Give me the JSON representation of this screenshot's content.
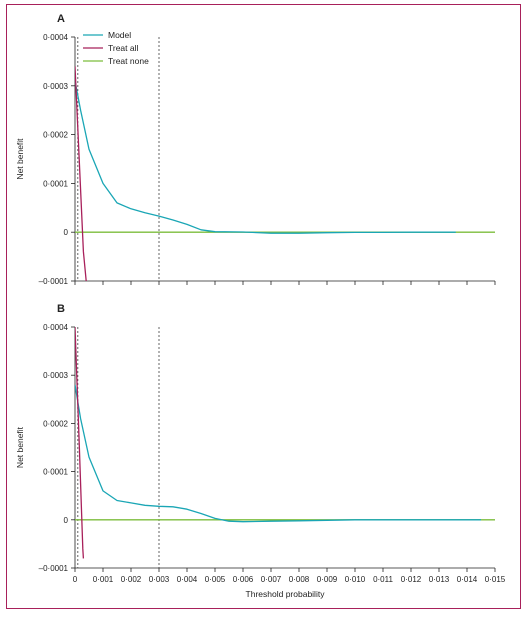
{
  "chart_data": [
    {
      "type": "line",
      "panel": "A",
      "xlabel": "",
      "ylabel": "Net benefit",
      "xlim": [
        0,
        0.015
      ],
      "ylim": [
        -0.0001,
        0.0004
      ],
      "yticks": [
        -0.0001,
        0,
        0.0001,
        0.0002,
        0.0003,
        0.0004
      ],
      "ytick_labels": [
        "–0·0001",
        "0",
        "0·0001",
        "0·0002",
        "0·0003",
        "0·0004"
      ],
      "vlines": [
        0.0001,
        0.003
      ],
      "legend": [
        "Model",
        "Treat all",
        "Treat none"
      ],
      "legend_position": "top-left",
      "grid": false,
      "series": [
        {
          "name": "Model",
          "color": "#1aa6b5",
          "x": [
            0,
            0.0002,
            0.0005,
            0.001,
            0.0015,
            0.002,
            0.0025,
            0.003,
            0.0035,
            0.004,
            0.0045,
            0.005,
            0.006,
            0.007,
            0.008,
            0.009,
            0.01,
            0.011,
            0.012,
            0.013,
            0.0136
          ],
          "y": [
            0.00031,
            0.00025,
            0.00017,
            0.0001,
            6e-05,
            4.8e-05,
            4e-05,
            3.3e-05,
            2.5e-05,
            1.6e-05,
            5e-06,
            1e-06,
            5e-07,
            -2e-06,
            -2e-06,
            -1e-06,
            -5e-07,
            -5e-07,
            0,
            0,
            0
          ]
        },
        {
          "name": "Treat all",
          "color": "#a8205a",
          "x": [
            0,
            0.00015,
            0.0003,
            0.0004
          ],
          "y": [
            0.00034,
            0.00015,
            -4e-05,
            -0.0001
          ]
        },
        {
          "name": "Treat none",
          "color": "#7cbd3c",
          "x": [
            0,
            0.015
          ],
          "y": [
            0,
            0
          ]
        }
      ]
    },
    {
      "type": "line",
      "panel": "B",
      "xlabel": "Threshold probability",
      "ylabel": "Net benefit",
      "xlim": [
        0,
        0.015
      ],
      "ylim": [
        -0.0001,
        0.0004
      ],
      "xticks": [
        0,
        0.001,
        0.002,
        0.003,
        0.004,
        0.005,
        0.006,
        0.007,
        0.008,
        0.009,
        0.01,
        0.011,
        0.012,
        0.013,
        0.014,
        0.015
      ],
      "xtick_labels": [
        "0",
        "0·001",
        "0·002",
        "0·003",
        "0·004",
        "0·005",
        "0·006",
        "0·007",
        "0·008",
        "0·009",
        "0·010",
        "0·011",
        "0·012",
        "0·013",
        "0·014",
        "0·015"
      ],
      "yticks": [
        -0.0001,
        0,
        0.0001,
        0.0002,
        0.0003,
        0.0004
      ],
      "ytick_labels": [
        "–0·0001",
        "0",
        "0·0001",
        "0·0002",
        "0·0003",
        "0·0004"
      ],
      "vlines": [
        0.0001,
        0.003
      ],
      "grid": false,
      "series": [
        {
          "name": "Model",
          "color": "#1aa6b5",
          "x": [
            0,
            0.0002,
            0.0005,
            0.001,
            0.0015,
            0.002,
            0.0025,
            0.003,
            0.0035,
            0.004,
            0.0045,
            0.005,
            0.0055,
            0.006,
            0.007,
            0.008,
            0.009,
            0.01,
            0.012,
            0.014,
            0.0145
          ],
          "y": [
            0.00028,
            0.00021,
            0.00013,
            6e-05,
            4e-05,
            3.5e-05,
            3e-05,
            2.8e-05,
            2.7e-05,
            2.2e-05,
            1.3e-05,
            3e-06,
            -3e-06,
            -4e-06,
            -3e-06,
            -2e-06,
            -1e-06,
            0,
            0,
            0,
            0
          ]
        },
        {
          "name": "Treat all",
          "color": "#a8205a",
          "x": [
            0,
            0.00015,
            0.00028,
            0.0003
          ],
          "y": [
            0.0004,
            0.00016,
            -6e-05,
            -8e-05
          ]
        },
        {
          "name": "Treat none",
          "color": "#7cbd3c",
          "x": [
            0,
            0.015
          ],
          "y": [
            0,
            0
          ]
        }
      ]
    }
  ]
}
